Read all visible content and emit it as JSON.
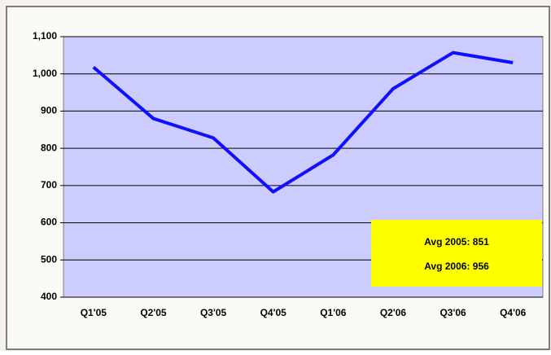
{
  "chart_data": {
    "type": "line",
    "categories": [
      "Q1'05",
      "Q2'05",
      "Q3'05",
      "Q4'05",
      "Q1'06",
      "Q2'06",
      "Q3'06",
      "Q4'06"
    ],
    "series": [
      {
        "color": "#1010ff",
        "values": [
          1018,
          880,
          828,
          683,
          782,
          960,
          1057,
          1030
        ]
      }
    ],
    "ylim": [
      400,
      1100
    ],
    "yticks": [
      400,
      500,
      600,
      700,
      800,
      900,
      {
        "value": 1000,
        "label": "1,000"
      },
      {
        "value": 1100,
        "label": "1,100"
      }
    ],
    "grid": true,
    "annotations": [
      "Avg 2005: 851",
      "Avg 2006: 956"
    ],
    "annotation_color": "#ffff00",
    "plot_background": "#ccccff"
  }
}
